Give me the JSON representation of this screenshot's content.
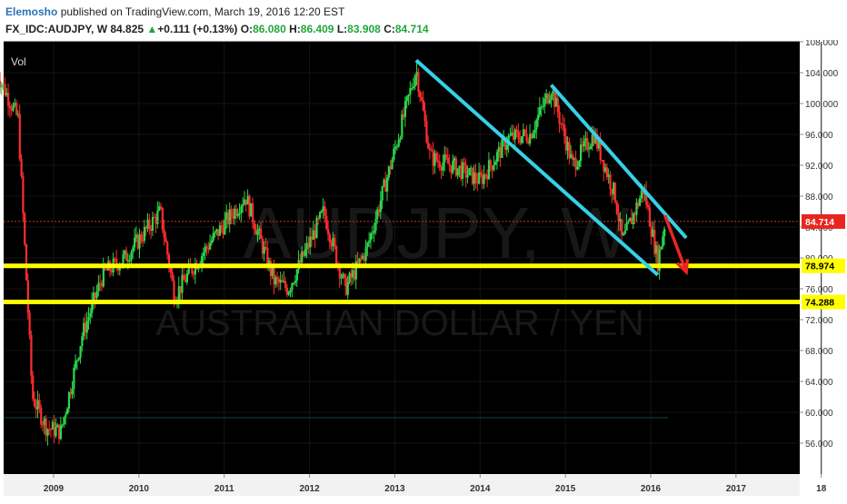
{
  "header": {
    "author": "Elemosho",
    "published": "published on TradingView.com, March 19, 2016 12:20 EST",
    "symbol": "FX_IDC:AUDJPY, W",
    "last": "84.825",
    "up_arrow": "▲",
    "change": "+0.111 (+0.13%)",
    "o_label": "O:",
    "o_value": "86.080",
    "h_label": "H:",
    "h_value": "86.409",
    "l_label": "L:",
    "l_value": "83.908",
    "c_label": "C:",
    "c_value": "84.714"
  },
  "chart_data": {
    "type": "candlestick",
    "indicator_label": "Vol",
    "watermark_symbol": "AUDJPY, W",
    "watermark_name": "AUSTRALIAN DOLLAR / YEN",
    "x_tick_labels": [
      "2009",
      "2010",
      "2011",
      "2012",
      "2013",
      "2014",
      "2015",
      "2016",
      "2017",
      "18"
    ],
    "y_tick_labels": [
      "108.000",
      "104.000",
      "100.000",
      "96.000",
      "92.000",
      "88.000",
      "84.000",
      "80.000",
      "76.000",
      "72.000",
      "68.000",
      "64.000",
      "60.000",
      "56.000"
    ],
    "ylim": [
      52,
      108
    ],
    "price_tags": [
      {
        "value": 84.714,
        "label": "84.714",
        "color": "#e8261f"
      },
      {
        "value": 78.974,
        "label": "78.974",
        "color": "#ffff00"
      },
      {
        "value": 74.288,
        "label": "74.288",
        "color": "#ffff00"
      }
    ],
    "horizontal_levels": [
      {
        "value": 78.974,
        "color": "#ffff00"
      },
      {
        "value": 74.288,
        "color": "#ffff00"
      }
    ],
    "channel_lines": [
      {
        "from": [
          "2013-04",
          105.6
        ],
        "to": [
          "2016-02",
          77.8
        ],
        "color": "#36d0e6"
      },
      {
        "from": [
          "2014-11",
          102.4
        ],
        "to": [
          "2016-06",
          82.6
        ],
        "color": "#36d0e6"
      }
    ],
    "projection_arrow": {
      "from": [
        "2016-03",
        85.5
      ],
      "to": [
        "2016-06",
        78.2
      ],
      "color": "#e8261f"
    },
    "key_points": [
      {
        "date": "2008-05",
        "close": 104.0
      },
      {
        "date": "2008-08",
        "close": 98.0
      },
      {
        "date": "2008-10",
        "close": 62.0
      },
      {
        "date": "2008-12",
        "close": 58.0
      },
      {
        "date": "2009-02",
        "close": 57.5
      },
      {
        "date": "2009-05",
        "close": 70.0
      },
      {
        "date": "2009-08",
        "close": 78.0
      },
      {
        "date": "2009-11",
        "close": 80.0
      },
      {
        "date": "2010-04",
        "close": 86.0
      },
      {
        "date": "2010-06",
        "close": 75.0
      },
      {
        "date": "2010-08",
        "close": 78.0
      },
      {
        "date": "2010-11",
        "close": 82.0
      },
      {
        "date": "2011-04",
        "close": 88.0
      },
      {
        "date": "2011-08",
        "close": 77.0
      },
      {
        "date": "2011-10",
        "close": 76.0
      },
      {
        "date": "2012-03",
        "close": 86.0
      },
      {
        "date": "2012-06",
        "close": 76.0
      },
      {
        "date": "2012-09",
        "close": 81.0
      },
      {
        "date": "2013-01",
        "close": 94.0
      },
      {
        "date": "2013-04",
        "close": 104.5
      },
      {
        "date": "2013-06",
        "close": 93.0
      },
      {
        "date": "2013-09",
        "close": 92.0
      },
      {
        "date": "2014-01",
        "close": 90.0
      },
      {
        "date": "2014-05",
        "close": 95.5
      },
      {
        "date": "2014-08",
        "close": 96.0
      },
      {
        "date": "2014-11",
        "close": 102.0
      },
      {
        "date": "2015-02",
        "close": 92.0
      },
      {
        "date": "2015-05",
        "close": 96.0
      },
      {
        "date": "2015-08",
        "close": 88.0
      },
      {
        "date": "2015-09",
        "close": 82.0
      },
      {
        "date": "2015-12",
        "close": 89.0
      },
      {
        "date": "2016-02",
        "close": 79.5
      },
      {
        "date": "2016-03",
        "close": 84.7
      }
    ]
  }
}
